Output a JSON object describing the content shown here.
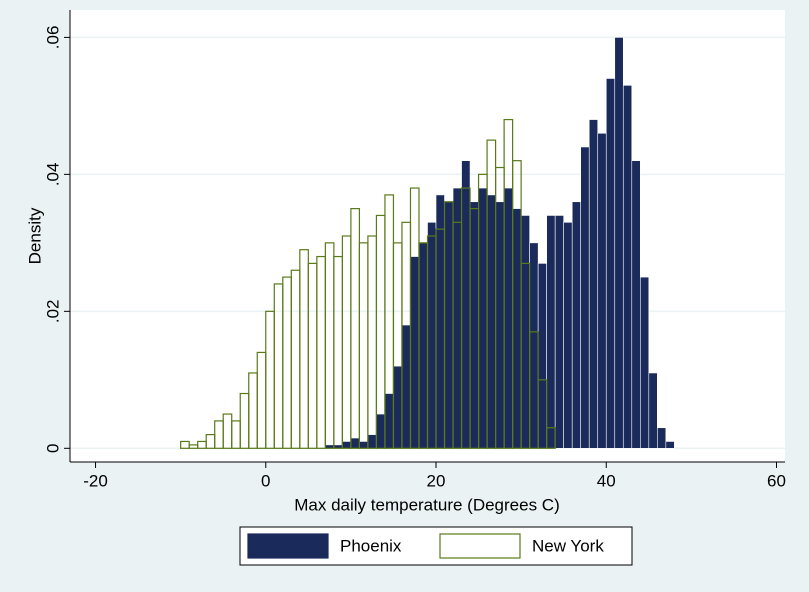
{
  "chart_data": {
    "type": "histogram",
    "xlabel": "Max daily temperature (Degrees C)",
    "ylabel": "Density",
    "xlim": [
      -23,
      61
    ],
    "xticks": [
      -20,
      0,
      20,
      40,
      60
    ],
    "ylim": [
      -0.002,
      0.064
    ],
    "yticks": [
      0,
      {
        "value": 0.02,
        "label": ".02"
      },
      {
        "value": 0.04,
        "label": ".04"
      },
      {
        "value": 0.06,
        "label": ".06"
      }
    ],
    "grid": true,
    "legend": "bottom",
    "series": [
      {
        "name": "Phoenix",
        "color": "#1a2a5a",
        "filled": true,
        "bins": [
          7,
          8,
          9,
          10,
          11,
          12,
          13,
          14,
          15,
          16,
          17,
          18,
          19,
          20,
          21,
          22,
          23,
          24,
          25,
          26,
          27,
          28,
          29,
          30,
          31,
          32,
          33,
          34,
          35,
          36,
          37,
          38,
          39,
          40,
          41,
          42,
          43,
          44,
          45,
          46,
          47,
          48
        ],
        "values": [
          0.0005,
          0.0005,
          0.001,
          0.0015,
          0.001,
          0.002,
          0.005,
          0.008,
          0.012,
          0.018,
          0.028,
          0.03,
          0.033,
          0.037,
          0.036,
          0.038,
          0.042,
          0.036,
          0.038,
          0.037,
          0.036,
          0.038,
          0.035,
          0.034,
          0.03,
          0.027,
          0.034,
          0.034,
          0.033,
          0.036,
          0.044,
          0.048,
          0.046,
          0.054,
          0.06,
          0.053,
          0.042,
          0.025,
          0.011,
          0.003,
          0.001
        ]
      },
      {
        "name": "New York",
        "color": "#5a7a1a",
        "filled": false,
        "bins": [
          -10,
          -9,
          -8,
          -7,
          -6,
          -5,
          -4,
          -3,
          -2,
          -1,
          0,
          1,
          2,
          3,
          4,
          5,
          6,
          7,
          8,
          9,
          10,
          11,
          12,
          13,
          14,
          15,
          16,
          17,
          18,
          19,
          20,
          21,
          22,
          23,
          24,
          25,
          26,
          27,
          28,
          29,
          30,
          31,
          32,
          33,
          34
        ],
        "values": [
          0.001,
          0.0005,
          0.001,
          0.002,
          0.004,
          0.005,
          0.004,
          0.008,
          0.011,
          0.014,
          0.02,
          0.024,
          0.025,
          0.026,
          0.029,
          0.027,
          0.028,
          0.03,
          0.028,
          0.031,
          0.035,
          0.03,
          0.031,
          0.034,
          0.037,
          0.03,
          0.033,
          0.038,
          0.03,
          0.031,
          0.032,
          0.036,
          0.033,
          0.038,
          0.035,
          0.04,
          0.045,
          0.041,
          0.048,
          0.042,
          0.027,
          0.017,
          0.01,
          0.003
        ]
      }
    ]
  }
}
